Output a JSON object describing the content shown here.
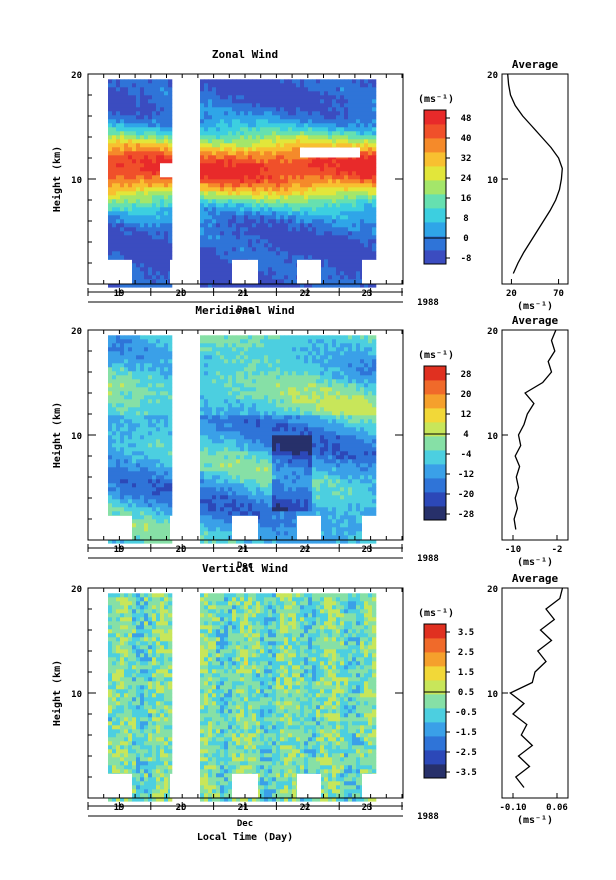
{
  "chart_data": [
    {
      "type": "heatmap",
      "title": "Zonal Wind",
      "ylabel": "Height (km)",
      "xlabel": "Dec",
      "year": "1988",
      "ylim": [
        0,
        20
      ],
      "yticks": [
        "10",
        "20"
      ],
      "xtick_labels": [
        "19",
        "20",
        "21",
        "22",
        "23"
      ],
      "colorbar": {
        "unit": "(ms⁻¹)",
        "tick_labels": [
          "48",
          "40",
          "32",
          "24",
          "16",
          "8",
          "0",
          "-8"
        ],
        "range": [
          -8,
          52
        ],
        "colors": [
          "#3b4cc0",
          "#2f74d8",
          "#2fa5e8",
          "#3ccfe0",
          "#66e0b0",
          "#a4e66a",
          "#e2e63a",
          "#f8c030",
          "#f58a2a",
          "#f0502a",
          "#e82a2a"
        ]
      },
      "average_profile": {
        "title": "Average",
        "xlabel": "(ms⁻¹)",
        "xtick_labels": [
          "20",
          "70"
        ],
        "xlim": [
          10,
          80
        ],
        "height": [
          1,
          2,
          3,
          4,
          5,
          6,
          7,
          8,
          9,
          10,
          11,
          12,
          13,
          14,
          15,
          16,
          17,
          18,
          19,
          20
        ],
        "value": [
          22,
          27,
          33,
          40,
          47,
          54,
          61,
          67,
          71,
          73,
          74,
          70,
          62,
          52,
          42,
          32,
          24,
          19,
          17,
          16
        ]
      }
    },
    {
      "type": "heatmap",
      "title": "Meridional Wind",
      "ylabel": "Height (km)",
      "xlabel": "Dec",
      "year": "1988",
      "ylim": [
        0,
        20
      ],
      "yticks": [
        "10",
        "20"
      ],
      "xtick_labels": [
        "19",
        "20",
        "21",
        "22",
        "23"
      ],
      "colorbar": {
        "unit": "(ms⁻¹)",
        "tick_labels": [
          "28",
          "20",
          "12",
          "4",
          "-4",
          "-12",
          "-20",
          "-28"
        ],
        "range": [
          -32,
          32
        ],
        "colors": [
          "#27306a",
          "#2c48b8",
          "#2f74d8",
          "#3aa0e8",
          "#4ccfe0",
          "#86e0a6",
          "#c8e65a",
          "#f2d838",
          "#f5a02c",
          "#f06a2a",
          "#e03020"
        ]
      },
      "average_profile": {
        "title": "Average",
        "xlabel": "(ms⁻¹)",
        "xtick_labels": [
          "-10",
          "-2"
        ],
        "xlim": [
          -12,
          0
        ],
        "height": [
          1,
          2,
          3,
          4,
          5,
          6,
          7,
          8,
          9,
          10,
          11,
          12,
          13,
          14,
          15,
          16,
          17,
          18,
          19,
          20
        ],
        "value": [
          -9.5,
          -9.8,
          -9.2,
          -9.6,
          -9.0,
          -9.4,
          -8.8,
          -9.6,
          -8.6,
          -9.0,
          -8.0,
          -7.4,
          -6.2,
          -7.8,
          -4.6,
          -3.0,
          -3.6,
          -2.4,
          -3.0,
          -2.2
        ]
      }
    },
    {
      "type": "heatmap",
      "title": "Vertical Wind",
      "ylabel": "Height (km)",
      "xlabel": "Dec",
      "year": "1988",
      "ylim": [
        0,
        20
      ],
      "yticks": [
        "10",
        "20"
      ],
      "xtick_labels": [
        "19",
        "20",
        "21",
        "22",
        "23"
      ],
      "main_xlabel": "Local Time (Day)",
      "colorbar": {
        "unit": "(ms⁻¹)",
        "tick_labels": [
          "3.5",
          "2.5",
          "1.5",
          "0.5",
          "-0.5",
          "-1.5",
          "-2.5",
          "-3.5"
        ],
        "range": [
          -4,
          4
        ],
        "colors": [
          "#27306a",
          "#2c48b8",
          "#2f74d8",
          "#3aa0e8",
          "#4ccfe0",
          "#86e0a6",
          "#c8e65a",
          "#f2d838",
          "#f5a02c",
          "#f06a2a",
          "#e03020"
        ]
      },
      "average_profile": {
        "title": "Average",
        "xlabel": "(ms⁻¹)",
        "xtick_labels": [
          "-0.10",
          "0.06"
        ],
        "xlim": [
          -0.14,
          0.1
        ],
        "height": [
          1,
          2,
          3,
          4,
          5,
          6,
          7,
          8,
          9,
          10,
          11,
          12,
          13,
          14,
          15,
          16,
          17,
          18,
          19,
          20
        ],
        "value": [
          -0.06,
          -0.09,
          -0.04,
          -0.08,
          -0.03,
          -0.07,
          -0.05,
          -0.1,
          -0.06,
          -0.11,
          -0.03,
          -0.02,
          0.02,
          -0.01,
          0.04,
          0.0,
          0.05,
          0.02,
          0.07,
          0.08
        ]
      }
    }
  ]
}
